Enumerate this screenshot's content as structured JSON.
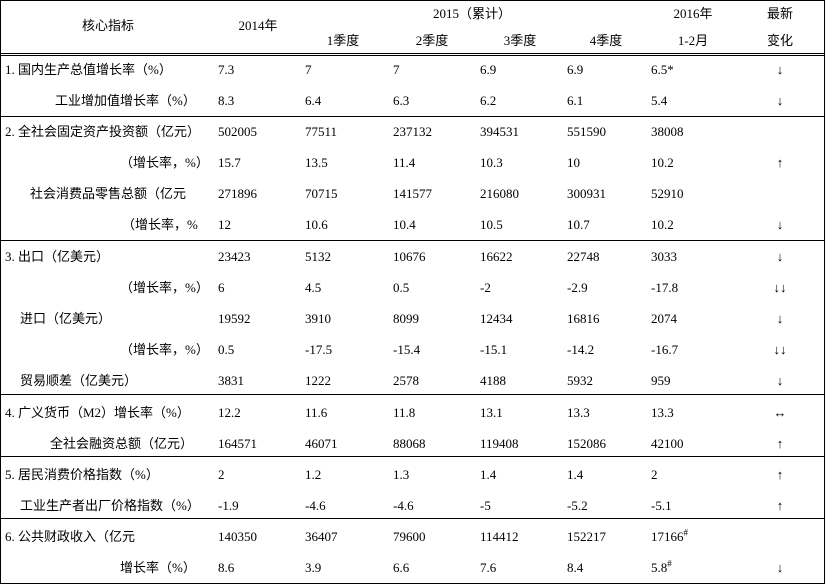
{
  "table": {
    "header": {
      "indicator": "核心指标",
      "y2014": "2014年",
      "y2015": "2015（累计）",
      "quarters": [
        "1季度",
        "2季度",
        "3季度",
        "4季度"
      ],
      "y2016": "2016年",
      "y2016_period": "1-2月",
      "change_line1": "最新",
      "change_line2": "变化"
    },
    "rows": [
      [
        "1. 国内生产总值增长率（%）",
        "7.3",
        "7",
        "7",
        "6.9",
        "6.9",
        "6.5*",
        "↓"
      ],
      [
        "工业增加值增长率（%）",
        "8.3",
        "6.4",
        "6.3",
        "6.2",
        "6.1",
        "5.4",
        "↓"
      ],
      [
        "2. 全社会固定资产投资额（亿元）",
        "502005",
        "77511",
        "237132",
        "394531",
        "551590",
        "38008",
        null
      ],
      [
        "（增长率，%）",
        "15.7",
        "13.5",
        "11.4",
        "10.3",
        "10",
        "10.2",
        "↑"
      ],
      [
        "社会消费品零售总额（亿元",
        "271896",
        "70715",
        "141577",
        "216080",
        "300931",
        "52910",
        null
      ],
      [
        "（增长率，%",
        "12",
        "10.6",
        "10.4",
        "10.5",
        "10.7",
        "10.2",
        "↓"
      ],
      [
        "3. 出口（亿美元）",
        "23423",
        "5132",
        "10676",
        "16622",
        "22748",
        "3033",
        "↓"
      ],
      [
        "（增长率，%）",
        "6",
        "4.5",
        "0.5",
        "-2",
        "-2.9",
        "-17.8",
        "↓↓"
      ],
      [
        "进口（亿美元）",
        "19592",
        "3910",
        "8099",
        "12434",
        "16816",
        "2074",
        "↓"
      ],
      [
        "（增长率，%）",
        "0.5",
        "-17.5",
        "-15.4",
        "-15.1",
        "-14.2",
        "-16.7",
        "↓↓"
      ],
      [
        "贸易顺差（亿美元）",
        "3831",
        "1222",
        "2578",
        "4188",
        "5932",
        "959",
        "↓"
      ],
      [
        "4. 广义货币（M2）增长率（%）",
        "12.2",
        "11.6",
        "11.8",
        "13.1",
        "13.3",
        "13.3",
        "↔"
      ],
      [
        "全社会融资总额（亿元）",
        "164571",
        "46071",
        "88068",
        "119408",
        "152086",
        "42100",
        "↑"
      ],
      [
        "5. 居民消费价格指数（%）",
        "2",
        "1.2",
        "1.3",
        "1.4",
        "1.4",
        "2",
        "↑"
      ],
      [
        "工业生产者出厂价格指数（%）",
        "-1.9",
        "-4.6",
        "-4.6",
        "-5",
        "-5.2",
        "-5.1",
        "↑"
      ],
      [
        "6. 公共财政收入（亿元",
        "140350",
        "36407",
        "79600",
        "114412",
        "152217",
        {
          "text": "17166",
          "sup": "#"
        },
        null
      ],
      [
        "增长率（%）",
        "8.6",
        "3.9",
        "6.6",
        "7.6",
        "8.4",
        {
          "text": "5.8",
          "sup": "#"
        },
        "↓"
      ]
    ]
  }
}
